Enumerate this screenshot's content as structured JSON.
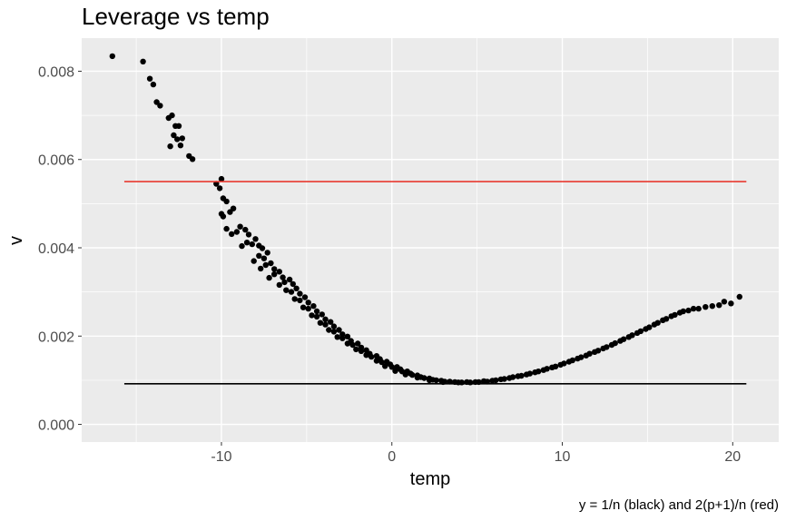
{
  "chart_data": {
    "type": "scatter",
    "title": "Leverage vs temp",
    "xlabel": "temp",
    "ylabel": "v",
    "caption": "y = 1/n (black) and 2(p+1)/n (red)",
    "xlim": [
      -18.2,
      22.7
    ],
    "ylim": [
      -0.0004,
      0.00875
    ],
    "x_ticks": [
      -10,
      0,
      10,
      20
    ],
    "x_tick_labels": [
      "-10",
      "0",
      "10",
      "20"
    ],
    "y_ticks": [
      0.0,
      0.002,
      0.004,
      0.006,
      0.008
    ],
    "y_tick_labels": [
      "0.000",
      "0.002",
      "0.004",
      "0.006",
      "0.008"
    ],
    "grid": true,
    "panel_background": "#ebebeb",
    "grid_color": "#ffffff",
    "point_color": "#000000",
    "reference_lines": [
      {
        "y": 0.00092,
        "x_range": [
          -15.7,
          20.8
        ],
        "color": "#000000"
      },
      {
        "y": 0.0055,
        "x_range": [
          -15.7,
          20.8
        ],
        "color": "#e8392f"
      }
    ],
    "points": [
      [
        -16.4,
        0.00834
      ],
      [
        -14.6,
        0.00822
      ],
      [
        -14.2,
        0.00783
      ],
      [
        -14.0,
        0.0077
      ],
      [
        -13.8,
        0.0073
      ],
      [
        -13.6,
        0.00722
      ],
      [
        -13.1,
        0.00694
      ],
      [
        -12.9,
        0.007
      ],
      [
        -12.7,
        0.00676
      ],
      [
        -12.5,
        0.00676
      ],
      [
        -13.0,
        0.0063
      ],
      [
        -12.8,
        0.00655
      ],
      [
        -12.6,
        0.00646
      ],
      [
        -12.4,
        0.00632
      ],
      [
        -12.3,
        0.00648
      ],
      [
        -11.9,
        0.00608
      ],
      [
        -11.7,
        0.00601
      ],
      [
        -10.3,
        0.00545
      ],
      [
        -10.0,
        0.00556
      ],
      [
        -10.1,
        0.00535
      ],
      [
        -9.9,
        0.00512
      ],
      [
        -9.7,
        0.00505
      ],
      [
        -10.0,
        0.00477
      ],
      [
        -9.9,
        0.00471
      ],
      [
        -9.5,
        0.00481
      ],
      [
        -9.3,
        0.00489
      ],
      [
        -9.7,
        0.00443
      ],
      [
        -9.4,
        0.00431
      ],
      [
        -9.1,
        0.00436
      ],
      [
        -8.9,
        0.00448
      ],
      [
        -8.6,
        0.00441
      ],
      [
        -8.4,
        0.0043
      ],
      [
        -8.8,
        0.00404
      ],
      [
        -8.5,
        0.00412
      ],
      [
        -8.2,
        0.00408
      ],
      [
        -8.0,
        0.0042
      ],
      [
        -7.8,
        0.00405
      ],
      [
        -7.6,
        0.00399
      ],
      [
        -8.1,
        0.0037
      ],
      [
        -7.8,
        0.00382
      ],
      [
        -7.5,
        0.00376
      ],
      [
        -7.3,
        0.00389
      ],
      [
        -7.7,
        0.00353
      ],
      [
        -7.4,
        0.00361
      ],
      [
        -7.1,
        0.00365
      ],
      [
        -6.9,
        0.00352
      ],
      [
        -7.2,
        0.00332
      ],
      [
        -6.9,
        0.0034
      ],
      [
        -6.6,
        0.00346
      ],
      [
        -6.4,
        0.00333
      ],
      [
        -6.6,
        0.00316
      ],
      [
        -6.3,
        0.00322
      ],
      [
        -6.0,
        0.00328
      ],
      [
        -5.8,
        0.00318
      ],
      [
        -6.2,
        0.00304
      ],
      [
        -5.9,
        0.003
      ],
      [
        -5.6,
        0.00308
      ],
      [
        -5.4,
        0.00296
      ],
      [
        -5.7,
        0.00284
      ],
      [
        -5.4,
        0.00281
      ],
      [
        -5.1,
        0.00288
      ],
      [
        -4.9,
        0.00276
      ],
      [
        -5.2,
        0.00265
      ],
      [
        -4.9,
        0.00262
      ],
      [
        -4.6,
        0.00268
      ],
      [
        -4.4,
        0.00256
      ],
      [
        -4.7,
        0.00247
      ],
      [
        -4.4,
        0.00244
      ],
      [
        -4.1,
        0.00249
      ],
      [
        -3.9,
        0.00238
      ],
      [
        -4.2,
        0.0023
      ],
      [
        -3.9,
        0.00226
      ],
      [
        -3.6,
        0.00232
      ],
      [
        -3.4,
        0.00222
      ],
      [
        -3.7,
        0.00214
      ],
      [
        -3.4,
        0.0021
      ],
      [
        -3.1,
        0.00214
      ],
      [
        -2.9,
        0.00204
      ],
      [
        -3.2,
        0.00198
      ],
      [
        -2.9,
        0.00195
      ],
      [
        -2.6,
        0.00199
      ],
      [
        -2.4,
        0.00189
      ],
      [
        -2.6,
        0.00183
      ],
      [
        -2.3,
        0.0018
      ],
      [
        -2.0,
        0.00183
      ],
      [
        -1.8,
        0.00174
      ],
      [
        -2.1,
        0.0017
      ],
      [
        -1.8,
        0.00166
      ],
      [
        -1.5,
        0.00168
      ],
      [
        -1.3,
        0.0016
      ],
      [
        -1.5,
        0.00157
      ],
      [
        -1.2,
        0.00153
      ],
      [
        -0.9,
        0.00155
      ],
      [
        -0.7,
        0.00148
      ],
      [
        -0.9,
        0.00144
      ],
      [
        -0.6,
        0.00141
      ],
      [
        -0.3,
        0.00142
      ],
      [
        -0.1,
        0.00136
      ],
      [
        -0.4,
        0.00132
      ],
      [
        0.0,
        0.0013
      ],
      [
        0.3,
        0.0013
      ],
      [
        0.5,
        0.00125
      ],
      [
        0.2,
        0.00121
      ],
      [
        0.6,
        0.0012
      ],
      [
        0.9,
        0.0012
      ],
      [
        1.1,
        0.00115
      ],
      [
        0.8,
        0.00113
      ],
      [
        1.2,
        0.00112
      ],
      [
        1.5,
        0.00111
      ],
      [
        1.7,
        0.00107
      ],
      [
        1.5,
        0.00106
      ],
      [
        1.9,
        0.00105
      ],
      [
        2.2,
        0.00104
      ],
      [
        2.4,
        0.00101
      ],
      [
        2.2,
        0.001
      ],
      [
        2.6,
        0.001
      ],
      [
        2.9,
        0.00099
      ],
      [
        3.1,
        0.00097
      ],
      [
        3.0,
        0.00096
      ],
      [
        3.4,
        0.00097
      ],
      [
        3.7,
        0.00096
      ],
      [
        3.9,
        0.00095
      ],
      [
        4.1,
        0.00095
      ],
      [
        4.4,
        0.00096
      ],
      [
        4.6,
        0.00095
      ],
      [
        4.9,
        0.00096
      ],
      [
        5.1,
        0.00096
      ],
      [
        5.4,
        0.00098
      ],
      [
        5.6,
        0.00097
      ],
      [
        5.9,
        0.00099
      ],
      [
        6.1,
        0.001
      ],
      [
        6.4,
        0.00102
      ],
      [
        6.6,
        0.00103
      ],
      [
        6.9,
        0.00105
      ],
      [
        7.1,
        0.00107
      ],
      [
        7.4,
        0.00109
      ],
      [
        7.6,
        0.0011
      ],
      [
        7.9,
        0.00113
      ],
      [
        8.1,
        0.00115
      ],
      [
        8.4,
        0.00118
      ],
      [
        8.6,
        0.0012
      ],
      [
        8.9,
        0.00123
      ],
      [
        9.1,
        0.00126
      ],
      [
        9.4,
        0.00129
      ],
      [
        9.6,
        0.00131
      ],
      [
        9.9,
        0.00135
      ],
      [
        10.1,
        0.00138
      ],
      [
        10.4,
        0.00142
      ],
      [
        10.6,
        0.00145
      ],
      [
        10.9,
        0.00149
      ],
      [
        11.1,
        0.00152
      ],
      [
        11.4,
        0.00156
      ],
      [
        11.6,
        0.0016
      ],
      [
        11.9,
        0.00164
      ],
      [
        12.1,
        0.00167
      ],
      [
        12.4,
        0.00172
      ],
      [
        12.6,
        0.00175
      ],
      [
        12.9,
        0.0018
      ],
      [
        13.1,
        0.00184
      ],
      [
        13.4,
        0.00189
      ],
      [
        13.6,
        0.00193
      ],
      [
        13.9,
        0.00198
      ],
      [
        14.1,
        0.00202
      ],
      [
        14.4,
        0.00207
      ],
      [
        14.6,
        0.00211
      ],
      [
        14.9,
        0.00216
      ],
      [
        15.1,
        0.0022
      ],
      [
        15.4,
        0.00226
      ],
      [
        15.6,
        0.0023
      ],
      [
        15.9,
        0.00236
      ],
      [
        16.1,
        0.00239
      ],
      [
        16.4,
        0.00245
      ],
      [
        16.6,
        0.00248
      ],
      [
        16.9,
        0.00253
      ],
      [
        17.1,
        0.00256
      ],
      [
        17.4,
        0.00258
      ],
      [
        17.7,
        0.00262
      ],
      [
        18.0,
        0.00262
      ],
      [
        18.4,
        0.00266
      ],
      [
        18.8,
        0.00268
      ],
      [
        19.2,
        0.0027
      ],
      [
        19.5,
        0.00278
      ],
      [
        19.9,
        0.00274
      ],
      [
        20.4,
        0.00289
      ]
    ]
  }
}
